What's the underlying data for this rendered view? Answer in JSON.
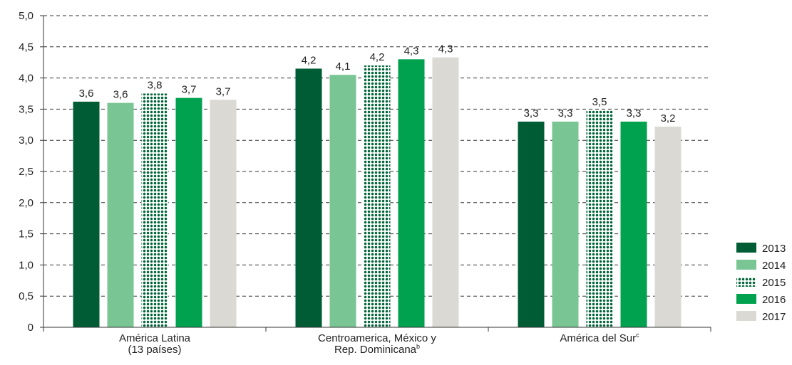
{
  "chart_data": {
    "type": "bar",
    "title": "",
    "xlabel": "",
    "ylabel": "",
    "ylim": [
      0,
      5.0
    ],
    "yticks": [
      "0",
      "0,5",
      "1,0",
      "1,5",
      "2,0",
      "2,5",
      "3,0",
      "3,5",
      "4,0",
      "4,5",
      "5,0"
    ],
    "ytick_values": [
      0,
      0.5,
      1.0,
      1.5,
      2.0,
      2.5,
      3.0,
      3.5,
      4.0,
      4.5,
      5.0
    ],
    "grid": true,
    "legend_position": "bottom-right",
    "categories": [
      {
        "lines": [
          "América Latina",
          "(13 países)"
        ],
        "superscript": ""
      },
      {
        "lines": [
          "Centroamerica, México y",
          "Rep. Dominicana"
        ],
        "superscript": "b"
      },
      {
        "lines": [
          "América del Sur"
        ],
        "superscript": "c"
      }
    ],
    "series": [
      {
        "name": "2013",
        "color": "#005c35",
        "pattern": "solid",
        "values": [
          3.62,
          4.15,
          3.3
        ],
        "labels": [
          "3,6",
          "4,2",
          "3,3"
        ]
      },
      {
        "name": "2014",
        "color": "#7ac594",
        "pattern": "solid",
        "values": [
          3.6,
          4.05,
          3.3
        ],
        "labels": [
          "3,6",
          "4,1",
          "3,3"
        ]
      },
      {
        "name": "2015",
        "color": "#006437",
        "pattern": "dotted",
        "values": [
          3.75,
          4.2,
          3.48
        ],
        "labels": [
          "3,8",
          "4,2",
          "3,5"
        ]
      },
      {
        "name": "2016",
        "color": "#00a24f",
        "pattern": "solid",
        "values": [
          3.68,
          4.3,
          3.3
        ],
        "labels": [
          "3,7",
          "4,3",
          "3,3"
        ]
      },
      {
        "name": "2017",
        "color": "#dad9d3",
        "pattern": "solid",
        "values": [
          3.65,
          4.33,
          3.22
        ],
        "labels": [
          "3,7",
          "4,3",
          "3,2"
        ]
      }
    ]
  }
}
